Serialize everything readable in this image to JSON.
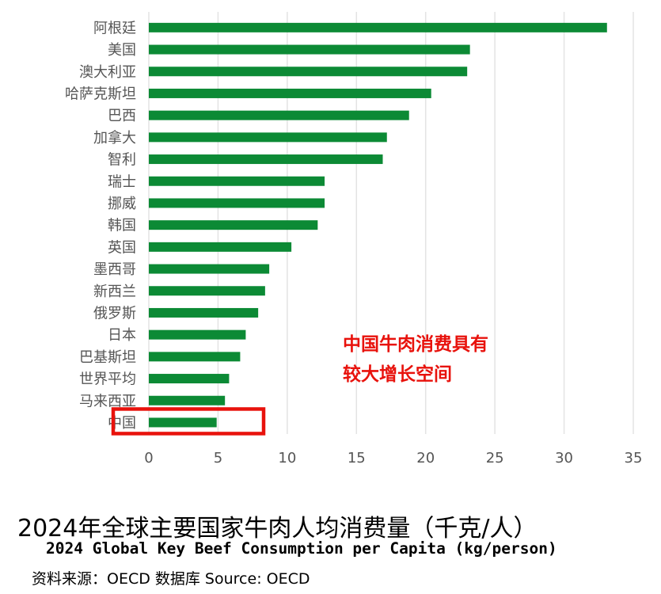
{
  "chart_data": {
    "type": "bar",
    "orientation": "horizontal",
    "categories": [
      "阿根廷",
      "美国",
      "澳大利亚",
      "哈萨克斯坦",
      "巴西",
      "加拿大",
      "智利",
      "瑞士",
      "挪威",
      "韩国",
      "英国",
      "墨西哥",
      "新西兰",
      "俄罗斯",
      "日本",
      "巴基斯坦",
      "世界平均",
      "马来西亚",
      "中国"
    ],
    "values": [
      33.1,
      23.2,
      23.0,
      20.4,
      18.8,
      17.2,
      16.9,
      12.7,
      12.7,
      12.2,
      10.3,
      8.7,
      8.4,
      7.9,
      7.0,
      6.6,
      5.8,
      5.5,
      4.9
    ],
    "xlim": [
      0,
      35
    ],
    "xticks": [
      0,
      5,
      10,
      15,
      20,
      25,
      30,
      35
    ],
    "grid": true,
    "bar_color": "#0c8a35",
    "grid_color": "#e3e3e3",
    "highlight": {
      "category": "中国",
      "color": "#e8120c"
    },
    "annotation": [
      "中国牛肉消费具有",
      "较大增长空间"
    ],
    "annotation_color": "#e8120c",
    "title": "2024年全球主要国家牛肉人均消费量（千克/人）",
    "subtitle": "2024 Global Key Beef Consumption per Capita (kg/person)"
  },
  "source": "资料来源：OECD 数据库 Source: OECD"
}
